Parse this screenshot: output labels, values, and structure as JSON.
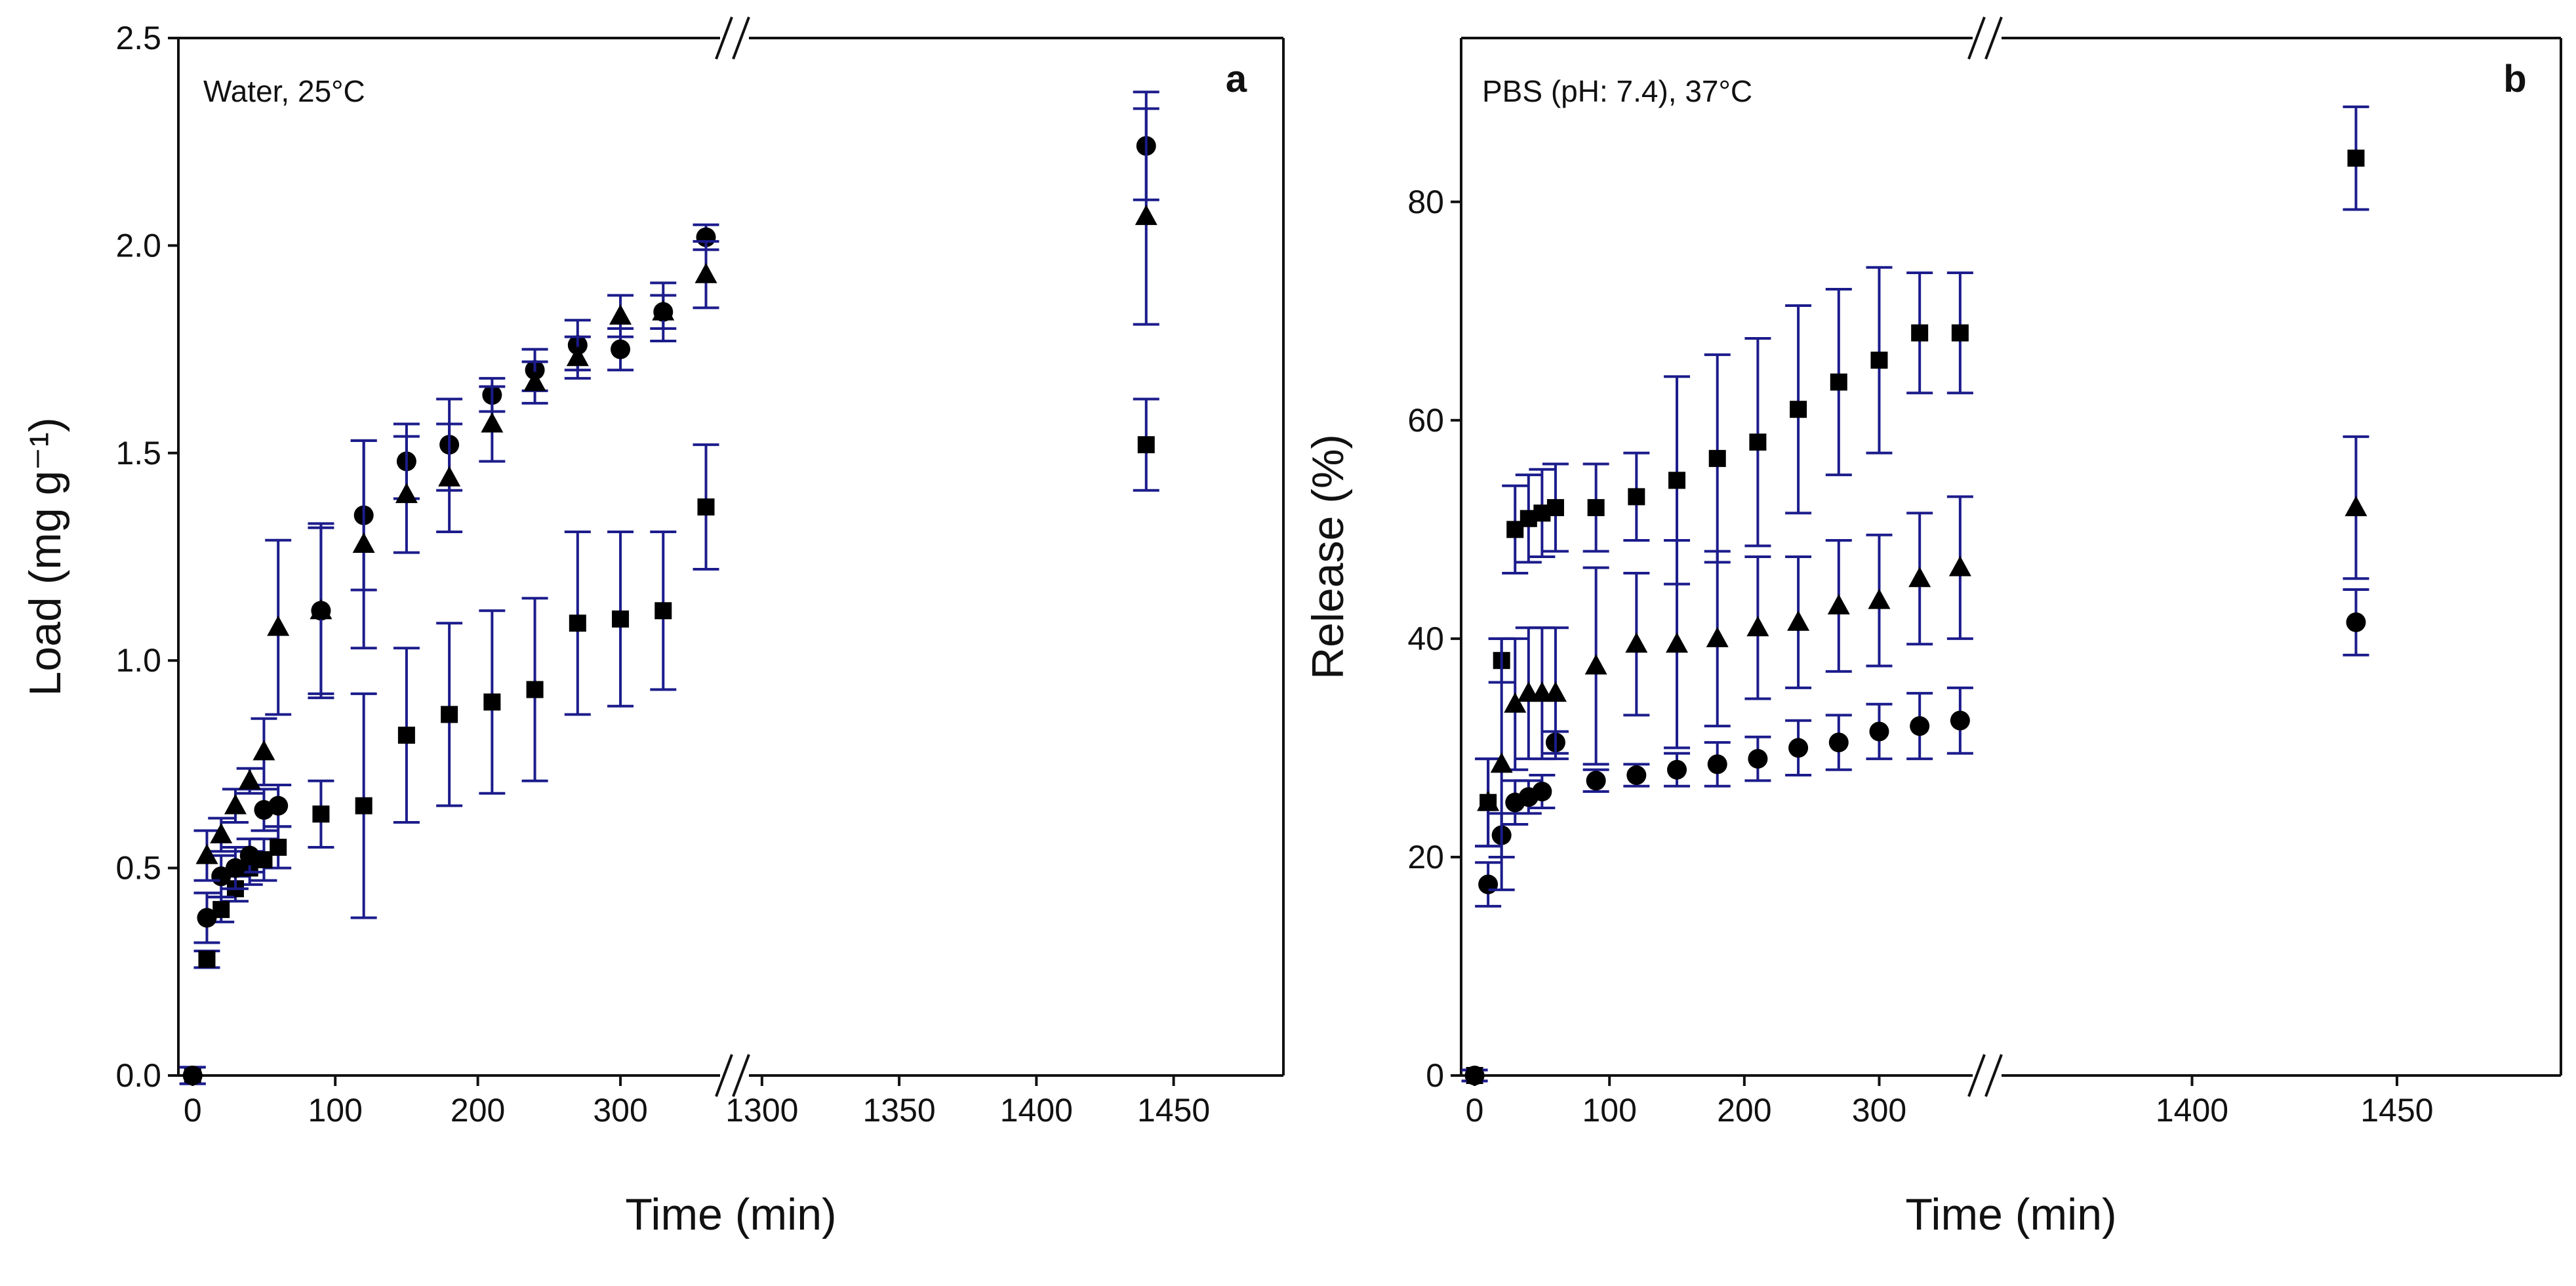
{
  "colors": {
    "errorbar": "#1c1c8c",
    "marker": "#000000",
    "axis": "#111111"
  },
  "chart_data": [
    {
      "panel": "a",
      "type": "scatter",
      "annotation": "Water, 25°C",
      "xlabel": "Time (min)",
      "ylabel": "Load (mg g⁻¹)",
      "ylim": [
        0,
        2.5
      ],
      "y_ticks": [
        "0.0",
        "0.5",
        "1.0",
        "1.5",
        "2.0",
        "2.5"
      ],
      "x_segments": [
        {
          "range": [
            -10,
            380
          ],
          "ticks": [
            "0",
            "100",
            "200",
            "300"
          ]
        },
        {
          "range": [
            1290,
            1490
          ],
          "ticks": [
            "1300",
            "1350",
            "1400",
            "1450"
          ]
        }
      ],
      "grid": false,
      "legend": "none",
      "series": [
        {
          "marker": "square",
          "points": [
            {
              "x": 0,
              "y": 0.0,
              "err": 0.02
            },
            {
              "x": 10,
              "y": 0.28,
              "err": 0.02
            },
            {
              "x": 20,
              "y": 0.4,
              "err": 0.03
            },
            {
              "x": 30,
              "y": 0.45,
              "err": 0.03
            },
            {
              "x": 40,
              "y": 0.5,
              "err": 0.04
            },
            {
              "x": 50,
              "y": 0.52,
              "err": 0.05
            },
            {
              "x": 60,
              "y": 0.55,
              "err": 0.05
            },
            {
              "x": 90,
              "y": 0.63,
              "err": 0.08
            },
            {
              "x": 120,
              "y": 0.65,
              "err": 0.27
            },
            {
              "x": 150,
              "y": 0.82,
              "err": 0.21
            },
            {
              "x": 180,
              "y": 0.87,
              "err": 0.22
            },
            {
              "x": 210,
              "y": 0.9,
              "err": 0.22
            },
            {
              "x": 240,
              "y": 0.93,
              "err": 0.22
            },
            {
              "x": 270,
              "y": 1.09,
              "err": 0.22
            },
            {
              "x": 300,
              "y": 1.1,
              "err": 0.21
            },
            {
              "x": 330,
              "y": 1.12,
              "err": 0.19
            },
            {
              "x": 360,
              "y": 1.37,
              "err": 0.15
            },
            {
              "x": 1440,
              "y": 1.52,
              "err": 0.11
            }
          ]
        },
        {
          "marker": "circle",
          "points": [
            {
              "x": 0,
              "y": 0.0,
              "err": 0.02
            },
            {
              "x": 10,
              "y": 0.38,
              "err": 0.06
            },
            {
              "x": 20,
              "y": 0.48,
              "err": 0.05
            },
            {
              "x": 30,
              "y": 0.5,
              "err": 0.05
            },
            {
              "x": 40,
              "y": 0.53,
              "err": 0.04
            },
            {
              "x": 50,
              "y": 0.64,
              "err": 0.05
            },
            {
              "x": 60,
              "y": 0.65,
              "err": 0.05
            },
            {
              "x": 90,
              "y": 1.12,
              "err": 0.21
            },
            {
              "x": 120,
              "y": 1.35,
              "err": 0.18
            },
            {
              "x": 150,
              "y": 1.48,
              "err": 0.09
            },
            {
              "x": 180,
              "y": 1.52,
              "err": 0.11
            },
            {
              "x": 210,
              "y": 1.64,
              "err": 0.04
            },
            {
              "x": 240,
              "y": 1.7,
              "err": 0.05
            },
            {
              "x": 270,
              "y": 1.76,
              "err": 0.06
            },
            {
              "x": 300,
              "y": 1.75,
              "err": 0.05
            },
            {
              "x": 330,
              "y": 1.84,
              "err": 0.07
            },
            {
              "x": 360,
              "y": 2.02,
              "err": 0.03
            },
            {
              "x": 1440,
              "y": 2.24,
              "err": 0.13
            }
          ]
        },
        {
          "marker": "triangle",
          "points": [
            {
              "x": 10,
              "y": 0.53,
              "err": 0.06
            },
            {
              "x": 20,
              "y": 0.58,
              "err": 0.04
            },
            {
              "x": 30,
              "y": 0.65,
              "err": 0.04
            },
            {
              "x": 40,
              "y": 0.71,
              "err": 0.03
            },
            {
              "x": 50,
              "y": 0.78,
              "err": 0.08
            },
            {
              "x": 60,
              "y": 1.08,
              "err": 0.21
            },
            {
              "x": 90,
              "y": 1.12,
              "err": 0.2
            },
            {
              "x": 120,
              "y": 1.28,
              "err": 0.25
            },
            {
              "x": 150,
              "y": 1.4,
              "err": 0.14
            },
            {
              "x": 180,
              "y": 1.44,
              "err": 0.13
            },
            {
              "x": 210,
              "y": 1.57,
              "err": 0.09
            },
            {
              "x": 240,
              "y": 1.67,
              "err": 0.05
            },
            {
              "x": 270,
              "y": 1.73,
              "err": 0.05
            },
            {
              "x": 300,
              "y": 1.83,
              "err": 0.05
            },
            {
              "x": 330,
              "y": 1.84,
              "err": 0.04
            },
            {
              "x": 360,
              "y": 1.93,
              "err": 0.08
            },
            {
              "x": 1440,
              "y": 2.07,
              "err": 0.26
            }
          ]
        }
      ]
    },
    {
      "panel": "b",
      "type": "scatter",
      "annotation": "PBS (pH: 7.4), 37°C",
      "xlabel": "Time (min)",
      "ylabel": "Release (%)",
      "ylim": [
        0,
        95
      ],
      "y_ticks": [
        "0",
        "20",
        "40",
        "60",
        "80"
      ],
      "x_segments": [
        {
          "range": [
            -10,
            380
          ],
          "ticks": [
            "0",
            "100",
            "200",
            "300"
          ]
        },
        {
          "range": [
            1350,
            1490
          ],
          "ticks": [
            "1400",
            "1450"
          ]
        }
      ],
      "grid": false,
      "legend": "none",
      "series": [
        {
          "marker": "square",
          "points": [
            {
              "x": 0,
              "y": 0,
              "err": 0.5
            },
            {
              "x": 10,
              "y": 25,
              "err": 4
            },
            {
              "x": 20,
              "y": 38,
              "err": 2
            },
            {
              "x": 30,
              "y": 50,
              "err": 4
            },
            {
              "x": 40,
              "y": 51,
              "err": 4
            },
            {
              "x": 50,
              "y": 51.5,
              "err": 4
            },
            {
              "x": 60,
              "y": 52,
              "err": 4
            },
            {
              "x": 90,
              "y": 52,
              "err": 4
            },
            {
              "x": 120,
              "y": 53,
              "err": 4
            },
            {
              "x": 150,
              "y": 54.5,
              "err": 9.5
            },
            {
              "x": 180,
              "y": 56.5,
              "err": 9.5
            },
            {
              "x": 210,
              "y": 58,
              "err": 9.5
            },
            {
              "x": 240,
              "y": 61,
              "err": 9.5
            },
            {
              "x": 270,
              "y": 63.5,
              "err": 8.5
            },
            {
              "x": 300,
              "y": 65.5,
              "err": 8.5
            },
            {
              "x": 330,
              "y": 68,
              "err": 5.5
            },
            {
              "x": 360,
              "y": 68,
              "err": 5.5
            },
            {
              "x": 1440,
              "y": 84,
              "err": 4.7
            }
          ]
        },
        {
          "marker": "circle",
          "points": [
            {
              "x": 0,
              "y": 0,
              "err": 0.5
            },
            {
              "x": 10,
              "y": 17.5,
              "err": 2
            },
            {
              "x": 20,
              "y": 22,
              "err": 2
            },
            {
              "x": 30,
              "y": 25,
              "err": 2
            },
            {
              "x": 40,
              "y": 25.5,
              "err": 1.5
            },
            {
              "x": 50,
              "y": 26,
              "err": 1.5
            },
            {
              "x": 60,
              "y": 30.5,
              "err": 1
            },
            {
              "x": 90,
              "y": 27,
              "err": 1
            },
            {
              "x": 120,
              "y": 27.5,
              "err": 1
            },
            {
              "x": 150,
              "y": 28,
              "err": 1.5
            },
            {
              "x": 180,
              "y": 28.5,
              "err": 2
            },
            {
              "x": 210,
              "y": 29,
              "err": 2
            },
            {
              "x": 240,
              "y": 30,
              "err": 2.5
            },
            {
              "x": 270,
              "y": 30.5,
              "err": 2.5
            },
            {
              "x": 300,
              "y": 31.5,
              "err": 2.5
            },
            {
              "x": 330,
              "y": 32,
              "err": 3
            },
            {
              "x": 360,
              "y": 32.5,
              "err": 3
            },
            {
              "x": 1440,
              "y": 41.5,
              "err": 3
            }
          ]
        },
        {
          "marker": "triangle",
          "points": [
            {
              "x": 10,
              "y": 25,
              "err": 4
            },
            {
              "x": 20,
              "y": 28.5,
              "err": 11.5
            },
            {
              "x": 30,
              "y": 34,
              "err": 6
            },
            {
              "x": 40,
              "y": 35,
              "err": 6
            },
            {
              "x": 50,
              "y": 35,
              "err": 6
            },
            {
              "x": 60,
              "y": 35,
              "err": 6
            },
            {
              "x": 90,
              "y": 37.5,
              "err": 9
            },
            {
              "x": 120,
              "y": 39.5,
              "err": 6.5
            },
            {
              "x": 150,
              "y": 39.5,
              "err": 9.5
            },
            {
              "x": 180,
              "y": 40,
              "err": 8
            },
            {
              "x": 210,
              "y": 41,
              "err": 6.5
            },
            {
              "x": 240,
              "y": 41.5,
              "err": 6
            },
            {
              "x": 270,
              "y": 43,
              "err": 6
            },
            {
              "x": 300,
              "y": 43.5,
              "err": 6
            },
            {
              "x": 330,
              "y": 45.5,
              "err": 6
            },
            {
              "x": 360,
              "y": 46.5,
              "err": 6.5
            },
            {
              "x": 1440,
              "y": 52,
              "err": 6.5
            }
          ]
        }
      ]
    }
  ]
}
